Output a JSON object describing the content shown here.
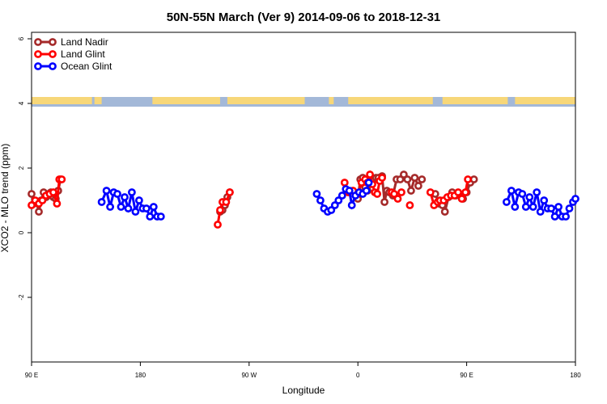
{
  "chart_data": {
    "type": "line",
    "title": "50N-55N March (Ver 9)   2014-09-06 to 2018-12-31",
    "xlabel": "Longitude",
    "ylabel": "XCO2 - MLO trend (ppm)",
    "xlim": [
      90,
      540
    ],
    "ylim": [
      -4,
      6.2
    ],
    "x_unit_note": "",
    "xticks": [
      {
        "value": 90,
        "label": "90 E"
      },
      {
        "value": 180,
        "label": "180"
      },
      {
        "value": 270,
        "label": "90 W"
      },
      {
        "value": 360,
        "label": "0"
      },
      {
        "value": 450,
        "label": "90 E"
      },
      {
        "value": 540,
        "label": "180"
      }
    ],
    "yticks": [
      {
        "value": -2,
        "label": "-2"
      },
      {
        "value": 0,
        "label": "0"
      },
      {
        "value": 2,
        "label": "2"
      },
      {
        "value": 4,
        "label": "4"
      },
      {
        "value": 6,
        "label": "6"
      }
    ],
    "legend_position": "top-left",
    "map_strip": {
      "y_min": 3.9,
      "y_max": 4.2,
      "ocean_color": "#a3b8d8",
      "land_color": "#f7d779"
    },
    "series": [
      {
        "name": "Land Nadir",
        "color": "#a52a2a",
        "segments": [
          [
            [
              90,
              1.2
            ],
            [
              92,
              0.9
            ],
            [
              94,
              0.95
            ],
            [
              96,
              0.65
            ],
            [
              98,
              1.0
            ],
            [
              100,
              1.25
            ],
            [
              102,
              1.1
            ],
            [
              104,
              1.2
            ],
            [
              106,
              1.25
            ],
            [
              108,
              1.1
            ],
            [
              110,
              1.05
            ],
            [
              112,
              1.3
            ],
            [
              114,
              1.65
            ]
          ],
          [
            [
              246,
              0.65
            ],
            [
              248,
              0.7
            ],
            [
              250,
              0.85
            ],
            [
              252,
              1.1
            ],
            [
              254,
              1.25
            ]
          ],
          [
            [
              360,
              1.05
            ],
            [
              362,
              1.65
            ],
            [
              364,
              1.7
            ],
            [
              366,
              1.4
            ],
            [
              368,
              1.3
            ],
            [
              370,
              1.5
            ],
            [
              373,
              1.65
            ],
            [
              375,
              1.7
            ],
            [
              377,
              1.7
            ],
            [
              380,
              1.75
            ],
            [
              382,
              0.95
            ],
            [
              384,
              1.3
            ],
            [
              386,
              1.25
            ],
            [
              389,
              1.15
            ],
            [
              392,
              1.65
            ],
            [
              395,
              1.65
            ],
            [
              398,
              1.8
            ],
            [
              401,
              1.65
            ],
            [
              404,
              1.3
            ],
            [
              407,
              1.7
            ],
            [
              410,
              1.45
            ],
            [
              413,
              1.65
            ]
          ],
          [
            [
              424,
              1.2
            ],
            [
              427,
              0.9
            ],
            [
              430,
              0.85
            ],
            [
              432,
              0.65
            ],
            [
              435,
              1.1
            ],
            [
              438,
              1.25
            ],
            [
              441,
              1.15
            ],
            [
              444,
              1.2
            ],
            [
              447,
              1.05
            ],
            [
              450,
              1.25
            ],
            [
              453,
              1.55
            ],
            [
              456,
              1.65
            ]
          ]
        ]
      },
      {
        "name": "Land Glint",
        "color": "#ff0000",
        "segments": [
          [
            [
              90,
              0.85
            ],
            [
              93,
              1.0
            ],
            [
              96,
              0.9
            ],
            [
              99,
              1.0
            ],
            [
              102,
              1.15
            ],
            [
              105,
              1.2
            ],
            [
              108,
              1.25
            ],
            [
              111,
              0.9
            ],
            [
              113,
              1.65
            ],
            [
              115,
              1.65
            ]
          ],
          [
            [
              244,
              0.25
            ],
            [
              246,
              0.7
            ],
            [
              248,
              0.95
            ],
            [
              251,
              0.95
            ],
            [
              254,
              1.25
            ]
          ],
          [
            [
              349,
              1.55
            ],
            [
              352,
              1.25
            ],
            [
              356,
              1.3
            ],
            [
              360,
              1.2
            ],
            [
              363,
              1.55
            ],
            [
              366,
              1.65
            ],
            [
              368,
              1.55
            ],
            [
              370,
              1.8
            ],
            [
              372,
              1.5
            ],
            [
              374,
              1.25
            ],
            [
              376,
              1.2
            ],
            [
              378,
              1.6
            ],
            [
              380,
              1.7
            ]
          ],
          [
            [
              388,
              1.25
            ],
            [
              390,
              1.2
            ],
            [
              393,
              1.05
            ],
            [
              396,
              1.25
            ]
          ],
          [
            [
              403,
              0.85
            ]
          ],
          [
            [
              420,
              1.25
            ],
            [
              423,
              0.85
            ],
            [
              426,
              0.95
            ],
            [
              428,
              1.0
            ],
            [
              431,
              1.0
            ],
            [
              434,
              1.1
            ],
            [
              437,
              1.15
            ],
            [
              440,
              1.15
            ],
            [
              443,
              1.25
            ],
            [
              446,
              1.05
            ],
            [
              449,
              1.25
            ],
            [
              451,
              1.65
            ]
          ]
        ]
      },
      {
        "name": "Ocean Glint",
        "color": "#0000ff",
        "segments": [
          [
            [
              148,
              0.95
            ],
            [
              152,
              1.3
            ],
            [
              155,
              0.8
            ],
            [
              158,
              1.25
            ],
            [
              161,
              1.2
            ],
            [
              164,
              0.8
            ],
            [
              167,
              1.1
            ],
            [
              170,
              0.75
            ],
            [
              173,
              1.25
            ],
            [
              176,
              0.65
            ],
            [
              179,
              1.0
            ],
            [
              182,
              0.75
            ],
            [
              185,
              0.75
            ],
            [
              188,
              0.5
            ],
            [
              191,
              0.8
            ],
            [
              194,
              0.5
            ],
            [
              197,
              0.5
            ]
          ],
          [
            [
              326,
              1.2
            ],
            [
              329,
              1.0
            ],
            [
              332,
              0.75
            ],
            [
              335,
              0.65
            ],
            [
              338,
              0.7
            ],
            [
              341,
              0.85
            ],
            [
              344,
              1.0
            ],
            [
              347,
              1.15
            ],
            [
              350,
              1.35
            ],
            [
              353,
              1.3
            ],
            [
              355,
              0.85
            ],
            [
              358,
              1.15
            ],
            [
              361,
              1.25
            ],
            [
              364,
              1.2
            ],
            [
              367,
              1.3
            ],
            [
              369,
              1.55
            ]
          ],
          [
            [
              483,
              0.95
            ],
            [
              487,
              1.3
            ],
            [
              490,
              0.8
            ],
            [
              493,
              1.25
            ],
            [
              496,
              1.2
            ],
            [
              499,
              0.8
            ],
            [
              502,
              1.1
            ],
            [
              505,
              0.8
            ],
            [
              508,
              1.25
            ],
            [
              511,
              0.65
            ],
            [
              514,
              1.0
            ],
            [
              517,
              0.75
            ],
            [
              520,
              0.75
            ],
            [
              523,
              0.5
            ],
            [
              526,
              0.8
            ],
            [
              529,
              0.5
            ],
            [
              532,
              0.5
            ],
            [
              535,
              0.75
            ],
            [
              538,
              0.95
            ],
            [
              540,
              1.05
            ]
          ]
        ]
      }
    ]
  }
}
